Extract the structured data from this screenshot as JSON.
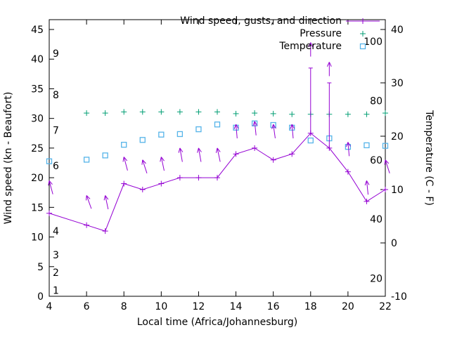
{
  "page": {
    "background": "#ffffff"
  },
  "legend": {
    "position": "top-right-inside",
    "items": [
      {
        "label": "Wind speed, gusts, and direction",
        "series": "wind"
      },
      {
        "label": "Pressure",
        "series": "pressure"
      },
      {
        "label": "Temperature",
        "series": "temperature"
      }
    ]
  },
  "axes": {
    "x": {
      "title": "Local time (Africa/Johannesburg)",
      "min": 4,
      "max": 22,
      "ticks": [
        4,
        6,
        8,
        10,
        12,
        14,
        16,
        18,
        20,
        22
      ]
    },
    "y_left": {
      "title": "Wind speed (kn - Beaufort)",
      "min": 0,
      "max": 45,
      "ticks": [
        0,
        5,
        10,
        15,
        20,
        25,
        30,
        35,
        40,
        45
      ],
      "beaufort_labels": [
        {
          "text": "1",
          "kn": 1
        },
        {
          "text": "2",
          "kn": 4
        },
        {
          "text": "3",
          "kn": 7
        },
        {
          "text": "4",
          "kn": 11
        },
        {
          "text": "6",
          "kn": 22
        },
        {
          "text": "7",
          "kn": 28
        },
        {
          "text": "8",
          "kn": 34
        },
        {
          "text": "9",
          "kn": 41
        }
      ]
    },
    "y_right": {
      "title": "Temperature (C - F)",
      "min": -10,
      "max": 40,
      "ticks": [
        -10,
        0,
        10,
        20,
        30,
        40
      ],
      "fahrenheit_labels": [
        {
          "text": "20",
          "f": 20
        },
        {
          "text": "40",
          "f": 40
        },
        {
          "text": "60",
          "f": 60
        },
        {
          "text": "80",
          "f": 80
        },
        {
          "text": "100",
          "f": 100
        }
      ]
    }
  },
  "chart_data": {
    "type": "line",
    "grid": false,
    "x_unit": "hour of day (local time)",
    "series": [
      {
        "name": "Wind speed",
        "axis": "left",
        "unit": "kn",
        "style": "line+plus",
        "color_key": "wind",
        "points": [
          [
            4,
            14
          ],
          [
            6,
            12
          ],
          [
            7,
            11
          ],
          [
            8,
            19
          ],
          [
            9,
            18
          ],
          [
            10,
            19
          ],
          [
            11,
            20
          ],
          [
            12,
            20
          ],
          [
            13,
            20
          ],
          [
            14,
            24
          ],
          [
            15,
            25
          ],
          [
            16,
            23
          ],
          [
            17,
            24
          ],
          [
            18,
            27.5
          ],
          [
            19,
            25
          ],
          [
            20,
            21
          ],
          [
            21,
            16
          ],
          [
            22,
            18
          ]
        ]
      },
      {
        "name": "Wind gusts",
        "axis": "left",
        "unit": "kn",
        "style": "vertical-range",
        "color_key": "wind",
        "ranges": [
          [
            18,
            27.5,
            38.5
          ],
          [
            19,
            25,
            36
          ]
        ]
      },
      {
        "name": "Wind direction",
        "axis": "left",
        "style": "arrow",
        "color_key": "wind",
        "arrows": [
          [
            4,
            19.5,
            -15
          ],
          [
            6,
            17,
            -20
          ],
          [
            7,
            17,
            -12
          ],
          [
            8,
            23.5,
            -15
          ],
          [
            9,
            23,
            -18
          ],
          [
            10,
            23.5,
            -12
          ],
          [
            11,
            25,
            -10
          ],
          [
            12,
            25,
            -10
          ],
          [
            13,
            25,
            -12
          ],
          [
            14,
            29,
            -5
          ],
          [
            15,
            29.5,
            -6
          ],
          [
            16,
            29,
            -8
          ],
          [
            17,
            29,
            -5
          ],
          [
            18,
            42.8,
            0
          ],
          [
            19,
            39.5,
            0
          ],
          [
            20,
            26,
            -5
          ],
          [
            21,
            19.5,
            -6
          ],
          [
            22,
            23,
            -18
          ]
        ]
      },
      {
        "name": "Pressure",
        "axis": "left",
        "style": "plus",
        "color_key": "pressure",
        "points": [
          [
            6,
            30.9
          ],
          [
            7,
            30.9
          ],
          [
            8,
            31.1
          ],
          [
            9,
            31.1
          ],
          [
            10,
            31.1
          ],
          [
            11,
            31.1
          ],
          [
            12,
            31.1
          ],
          [
            13,
            31.1
          ],
          [
            14,
            30.8
          ],
          [
            15,
            30.9
          ],
          [
            16,
            30.8
          ],
          [
            17,
            30.7
          ],
          [
            18,
            30.7
          ],
          [
            19,
            30.7
          ],
          [
            20,
            30.7
          ],
          [
            21,
            30.7
          ],
          [
            22,
            30.9
          ]
        ]
      },
      {
        "name": "Temperature",
        "axis": "right",
        "unit": "C",
        "style": "open-square",
        "color_key": "temperature",
        "points": [
          [
            4,
            15.3
          ],
          [
            6,
            15.6
          ],
          [
            7,
            16.4
          ],
          [
            8,
            18.4
          ],
          [
            9,
            19.3
          ],
          [
            10,
            20.3
          ],
          [
            11,
            20.4
          ],
          [
            12,
            21.3
          ],
          [
            13,
            22.2
          ],
          [
            14,
            21.6
          ],
          [
            15,
            22.4
          ],
          [
            16,
            22.1
          ],
          [
            17,
            21.6
          ],
          [
            18,
            19.2
          ],
          [
            19,
            19.6
          ],
          [
            20,
            18.0
          ],
          [
            21,
            18.3
          ],
          [
            22,
            18.2
          ]
        ]
      }
    ]
  },
  "colors": {
    "wind": "#9400d3",
    "pressure": "#009e73",
    "temperature": "#56b4e9",
    "axis": "#000000",
    "text": "#000000",
    "background": "#ffffff"
  }
}
